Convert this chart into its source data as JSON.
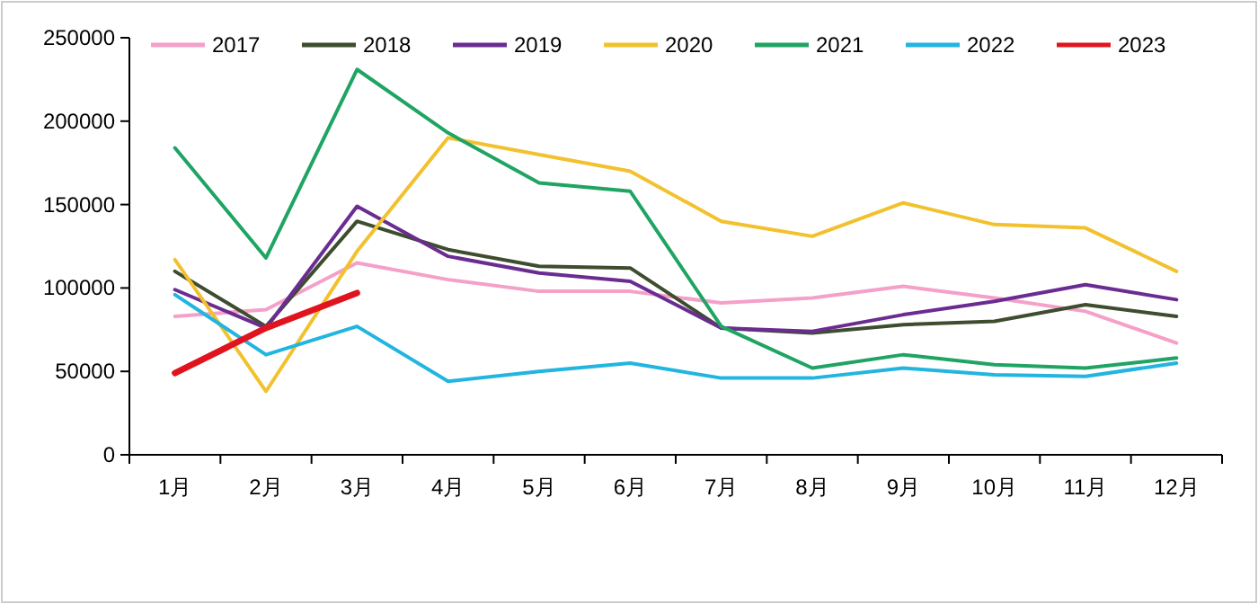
{
  "chart_data": {
    "type": "line",
    "categories": [
      "1月",
      "2月",
      "3月",
      "4月",
      "5月",
      "6月",
      "7月",
      "8月",
      "9月",
      "10月",
      "11月",
      "12月"
    ],
    "ylim": [
      0,
      250000
    ],
    "yticks": [
      0,
      50000,
      100000,
      150000,
      200000,
      250000
    ],
    "legend": "top",
    "series": [
      {
        "name": "2017",
        "color": "#f4a0c8",
        "values": [
          83000,
          87000,
          115000,
          105000,
          98000,
          98000,
          91000,
          94000,
          101000,
          94000,
          86000,
          67000
        ]
      },
      {
        "name": "2018",
        "color": "#3d4d2e",
        "values": [
          110000,
          77000,
          140000,
          123000,
          113000,
          112000,
          76000,
          73000,
          78000,
          80000,
          90000,
          83000
        ]
      },
      {
        "name": "2019",
        "color": "#6a2c91",
        "values": [
          99000,
          76000,
          149000,
          119000,
          109000,
          104000,
          76000,
          74000,
          84000,
          92000,
          102000,
          93000
        ]
      },
      {
        "name": "2020",
        "color": "#f2c12e",
        "values": [
          117000,
          38000,
          122000,
          190000,
          180000,
          170000,
          140000,
          131000,
          151000,
          138000,
          136000,
          110000
        ]
      },
      {
        "name": "2021",
        "color": "#1fa463",
        "values": [
          184000,
          118000,
          231000,
          193000,
          163000,
          158000,
          77000,
          52000,
          60000,
          54000,
          52000,
          58000
        ]
      },
      {
        "name": "2022",
        "color": "#22b5e0",
        "values": [
          96000,
          60000,
          77000,
          44000,
          50000,
          55000,
          46000,
          46000,
          52000,
          48000,
          47000,
          55000
        ]
      },
      {
        "name": "2023",
        "color": "#e0141e",
        "values": [
          49000,
          76000,
          97000,
          null,
          null,
          null,
          null,
          null,
          null,
          null,
          null,
          null
        ]
      }
    ]
  }
}
